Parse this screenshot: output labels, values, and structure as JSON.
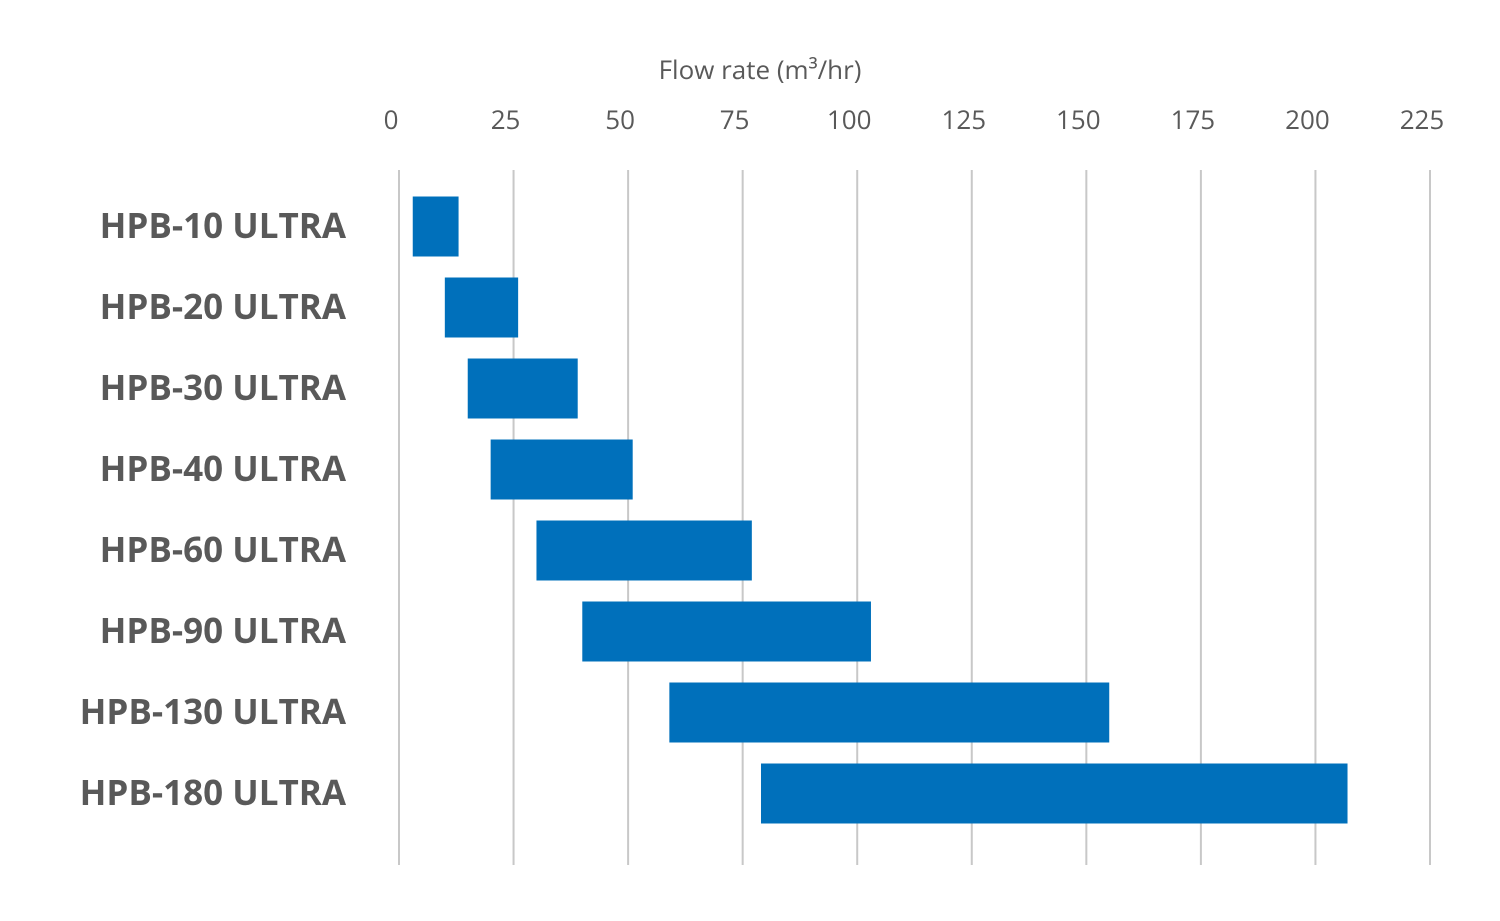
{
  "chart_data": {
    "type": "floating-bar",
    "xlabel": "Flow rate (m³/hr)",
    "categories": [
      "HPB-10 ULTRA",
      "HPB-20 ULTRA",
      "HPB-30 ULTRA",
      "HPB-40 ULTRA",
      "HPB-60 ULTRA",
      "HPB-90 ULTRA",
      "HPB-130 ULTRA",
      "HPB-180 ULTRA"
    ],
    "starts": [
      3,
      10,
      15,
      20,
      30,
      40,
      59,
      79
    ],
    "ends": [
      13,
      26,
      39,
      51,
      77,
      103,
      155,
      207
    ],
    "color": "#0070bb",
    "xlim": [
      0,
      225
    ],
    "xticks": [
      0,
      25,
      50,
      75,
      100,
      125,
      150,
      175,
      200,
      225
    ],
    "grid": true
  }
}
